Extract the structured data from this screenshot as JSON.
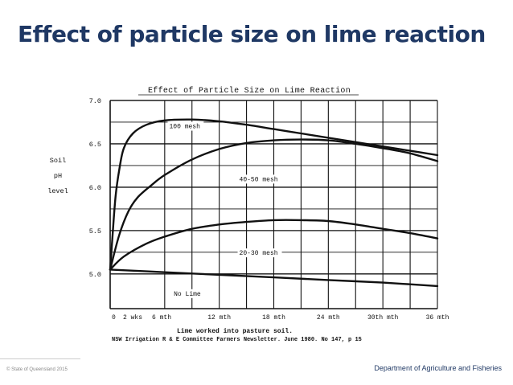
{
  "slide": {
    "title": "Effect of particle size on lime reaction",
    "copyright": "© State of Queensland 2015",
    "department": "Department of Agriculture and Fisheries"
  },
  "chart_data": {
    "type": "line",
    "title": "Effect of Particle Size on Lime Reaction",
    "ylabel_lines": [
      "Soil",
      "pH",
      "level"
    ],
    "xlabel": "Lime worked into pasture soil.",
    "source": "NSW Irrigation R & E Committee Farmers Newsletter. June 1980. No 147, p 15",
    "ylim": [
      4.6,
      7.0
    ],
    "xlim": [
      0,
      36
    ],
    "yticks": [
      {
        "value": 5.0,
        "label": "5.0"
      },
      {
        "value": 5.5,
        "label": "5.5"
      },
      {
        "value": 6.0,
        "label": "6.0"
      },
      {
        "value": 6.5,
        "label": "6.5"
      },
      {
        "value": 7.0,
        "label": "7.0"
      }
    ],
    "xticks": [
      {
        "value": 0,
        "label": "0"
      },
      {
        "value": 0.5,
        "label": "2 wks"
      },
      {
        "value": 1.5,
        "label": "6 mth"
      },
      {
        "value": 12,
        "label": "12 mth"
      },
      {
        "value": 18,
        "label": "18 mth"
      },
      {
        "value": 24,
        "label": "24 mth"
      },
      {
        "value": 30,
        "label": "30th mth"
      },
      {
        "value": 36,
        "label": "36 mth"
      }
    ],
    "grid": true,
    "grid_y": [
      5.0,
      5.25,
      5.5,
      5.75,
      6.0,
      6.25,
      6.5,
      6.75,
      7.0
    ],
    "grid_x": [
      6,
      9,
      12,
      15,
      18,
      21,
      24,
      27,
      30,
      33,
      36
    ],
    "series": [
      {
        "name": "100 mesh",
        "points": [
          [
            0,
            5.05
          ],
          [
            0.3,
            5.5
          ],
          [
            0.6,
            5.9
          ],
          [
            1,
            6.2
          ],
          [
            1.5,
            6.45
          ],
          [
            2.5,
            6.62
          ],
          [
            4,
            6.72
          ],
          [
            6,
            6.77
          ],
          [
            9,
            6.78
          ],
          [
            12,
            6.76
          ],
          [
            15,
            6.72
          ],
          [
            18,
            6.67
          ],
          [
            21,
            6.62
          ],
          [
            24,
            6.57
          ],
          [
            27,
            6.52
          ],
          [
            30,
            6.47
          ],
          [
            33,
            6.42
          ],
          [
            36,
            6.37
          ]
        ],
        "label_at": [
          6.5,
          6.68
        ]
      },
      {
        "name": "40-50 mesh",
        "points": [
          [
            0,
            5.05
          ],
          [
            1,
            5.45
          ],
          [
            2,
            5.72
          ],
          [
            3,
            5.88
          ],
          [
            4.5,
            6.02
          ],
          [
            6,
            6.14
          ],
          [
            9,
            6.32
          ],
          [
            12,
            6.44
          ],
          [
            15,
            6.51
          ],
          [
            18,
            6.54
          ],
          [
            21,
            6.55
          ],
          [
            24,
            6.54
          ],
          [
            27,
            6.5
          ],
          [
            30,
            6.45
          ],
          [
            33,
            6.39
          ],
          [
            36,
            6.3
          ]
        ],
        "label_at": [
          14.2,
          6.07
        ]
      },
      {
        "name": "20-30 mesh",
        "points": [
          [
            0,
            5.05
          ],
          [
            1.5,
            5.2
          ],
          [
            4,
            5.35
          ],
          [
            6,
            5.43
          ],
          [
            9,
            5.52
          ],
          [
            12,
            5.57
          ],
          [
            15,
            5.6
          ],
          [
            18,
            5.62
          ],
          [
            21,
            5.62
          ],
          [
            24,
            5.61
          ],
          [
            27,
            5.57
          ],
          [
            30,
            5.52
          ],
          [
            33,
            5.47
          ],
          [
            36,
            5.41
          ]
        ],
        "label_at": [
          14.2,
          5.22
        ]
      },
      {
        "name": "No Lime",
        "points": [
          [
            0,
            5.05
          ],
          [
            6,
            5.02
          ],
          [
            12,
            4.99
          ],
          [
            18,
            4.96
          ],
          [
            24,
            4.93
          ],
          [
            30,
            4.9
          ],
          [
            36,
            4.86
          ]
        ],
        "label_at": [
          7,
          4.75
        ]
      }
    ]
  }
}
